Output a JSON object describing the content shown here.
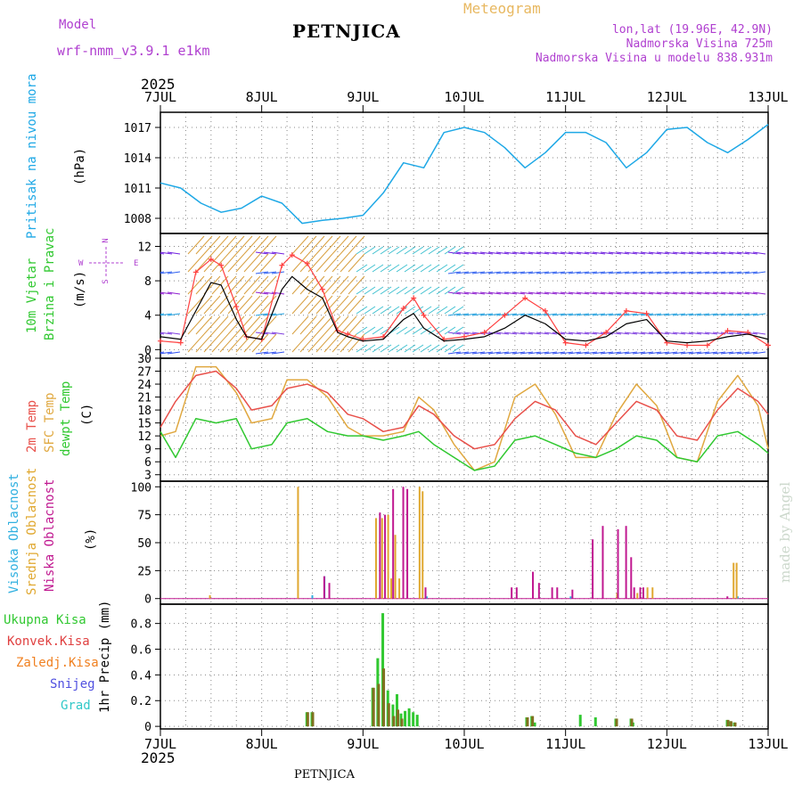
{
  "header": {
    "model_label": "Model",
    "model_name": "wrf-nmm_v3.9.1  e1km",
    "station": "PETNJICA",
    "meteogram": "Meteogram",
    "coords": "lon,lat (19.96E, 42.9N)",
    "elevation": "Nadmorska Visina 725m",
    "model_elevation": "Nadmorska Visina u modelu 838.931m"
  },
  "axis": {
    "year": "2025",
    "dates": [
      "7JUL",
      "8JUL",
      "9JUL",
      "10JUL",
      "11JUL",
      "12JUL",
      "13JUL"
    ]
  },
  "footer": {
    "station": "PETNJICA",
    "watermark": "made by Angel"
  },
  "panel_labels": {
    "pressure": [
      "Pritisak na nivou mora",
      "(hPa)"
    ],
    "wind": [
      "10m Vjetar",
      "Brzina i Pravac",
      "(m/s)"
    ],
    "compass": {
      "n": "N",
      "s": "S",
      "w": "W",
      "e": "E"
    },
    "temp": [
      "2m Temp",
      "SFC Temp",
      "dewpt Temp",
      "(C)"
    ],
    "cloud": [
      "Visoka Oblacnost",
      "Srednja Oblacnost",
      "Niska Oblacnost",
      "(%)"
    ],
    "precip_legend": [
      "Ukupna Kisa",
      "Konvek.Kisa",
      "Zaledj.Kisa",
      "Snijeg",
      "Grad"
    ],
    "precip_unit": "1hr Precip (mm)"
  },
  "colors": {
    "pressure": "#1ea8e6",
    "temp2m": "#e8504a",
    "sfc": "#e0a840",
    "dewpt": "#30c830",
    "high_cloud": "#30b0e0",
    "mid_cloud": "#e0a830",
    "low_cloud": "#c01890",
    "total_rain": "#30c830",
    "conv_rain": "#e04040",
    "frz_rain": "#f08020",
    "snow": "#5050e0",
    "hail": "#30c8c8",
    "wind_speed": "#000000",
    "gust": "#ff4040"
  },
  "chart_data": [
    {
      "type": "line",
      "panel": "pressure",
      "ylabel": "(hPa)",
      "ylim": [
        1006.5,
        1018.5
      ],
      "yticks": [
        1008,
        1011,
        1014,
        1017
      ],
      "xlim_days": [
        0,
        6
      ],
      "series": [
        {
          "name": "Pritisak na nivou mora",
          "x": [
            0,
            0.2,
            0.4,
            0.6,
            0.8,
            1.0,
            1.2,
            1.4,
            1.6,
            1.8,
            2.0,
            2.2,
            2.4,
            2.6,
            2.8,
            3.0,
            3.2,
            3.4,
            3.6,
            3.8,
            4.0,
            4.2,
            4.4,
            4.6,
            4.8,
            5.0,
            5.2,
            5.4,
            5.6,
            5.8,
            6.0
          ],
          "values": [
            1011.5,
            1011.0,
            1009.5,
            1008.6,
            1009.0,
            1010.2,
            1009.5,
            1007.5,
            1007.8,
            1008.0,
            1008.3,
            1010.5,
            1013.5,
            1013.0,
            1016.5,
            1017.0,
            1016.5,
            1015.0,
            1013.0,
            1014.5,
            1016.5,
            1016.5,
            1015.5,
            1013.0,
            1014.5,
            1016.8,
            1017.0,
            1015.5,
            1014.5,
            1015.8,
            1017.3
          ]
        }
      ]
    },
    {
      "type": "line",
      "panel": "wind",
      "ylabel": "(m/s)",
      "ylim": [
        -1,
        13.5
      ],
      "yticks": [
        0,
        4,
        8,
        12
      ],
      "series": [
        {
          "name": "wind_speed",
          "x": [
            0,
            0.2,
            0.35,
            0.5,
            0.6,
            0.75,
            0.85,
            1.0,
            1.2,
            1.3,
            1.45,
            1.6,
            1.75,
            1.85,
            2.0,
            2.2,
            2.4,
            2.5,
            2.6,
            2.8,
            3.0,
            3.2,
            3.4,
            3.6,
            3.8,
            4.0,
            4.2,
            4.4,
            4.6,
            4.8,
            5.0,
            5.2,
            5.4,
            5.6,
            5.8,
            6.0
          ],
          "values": [
            1.5,
            1.2,
            4.5,
            7.8,
            7.5,
            3.5,
            1.5,
            1.2,
            7.0,
            8.5,
            7.0,
            6.0,
            2.0,
            1.5,
            1.0,
            1.2,
            3.5,
            4.2,
            2.5,
            1.0,
            1.2,
            1.5,
            2.5,
            4.0,
            3.0,
            1.2,
            1.0,
            1.5,
            3.0,
            3.5,
            1.0,
            0.8,
            1.0,
            1.5,
            1.8,
            1.2
          ]
        },
        {
          "name": "gust",
          "x": [
            0,
            0.2,
            0.35,
            0.5,
            0.6,
            0.75,
            0.85,
            1.0,
            1.2,
            1.3,
            1.45,
            1.6,
            1.75,
            1.85,
            2.0,
            2.2,
            2.4,
            2.5,
            2.6,
            2.8,
            3.0,
            3.2,
            3.4,
            3.6,
            3.8,
            4.0,
            4.2,
            4.4,
            4.6,
            4.8,
            5.0,
            5.2,
            5.4,
            5.6,
            5.8,
            6.0
          ],
          "values": [
            1.0,
            0.8,
            9.0,
            10.5,
            9.8,
            5.0,
            1.5,
            1.2,
            9.8,
            11.0,
            10.0,
            7.0,
            2.2,
            1.8,
            1.2,
            1.5,
            4.8,
            6.0,
            4.0,
            1.2,
            1.5,
            2.0,
            4.0,
            6.0,
            4.5,
            0.8,
            0.5,
            2.0,
            4.5,
            4.2,
            0.8,
            0.5,
            0.5,
            2.2,
            2.0,
            0.5
          ]
        }
      ]
    },
    {
      "type": "line",
      "panel": "temp",
      "ylabel": "(C)",
      "ylim": [
        1.5,
        30
      ],
      "yticks": [
        3,
        6,
        9,
        12,
        15,
        18,
        21,
        24,
        27,
        30
      ],
      "series": [
        {
          "name": "2m Temp",
          "x": [
            0,
            0.15,
            0.35,
            0.55,
            0.75,
            0.9,
            1.1,
            1.25,
            1.45,
            1.65,
            1.85,
            2.0,
            2.2,
            2.4,
            2.55,
            2.7,
            2.9,
            3.1,
            3.3,
            3.5,
            3.7,
            3.9,
            4.1,
            4.3,
            4.5,
            4.7,
            4.9,
            5.1,
            5.3,
            5.5,
            5.7,
            5.9,
            6.0
          ],
          "values": [
            14,
            20,
            26,
            27,
            23,
            18,
            19,
            23,
            24,
            22,
            17,
            16,
            13,
            14,
            19,
            17,
            12,
            9,
            10,
            16,
            20,
            18,
            12,
            10,
            15,
            20,
            18,
            12,
            11,
            18,
            23,
            20,
            17
          ]
        },
        {
          "name": "SFC Temp",
          "x": [
            0,
            0.15,
            0.35,
            0.55,
            0.75,
            0.9,
            1.1,
            1.25,
            1.45,
            1.65,
            1.85,
            2.0,
            2.2,
            2.4,
            2.55,
            2.7,
            2.9,
            3.1,
            3.3,
            3.5,
            3.7,
            3.9,
            4.1,
            4.3,
            4.5,
            4.7,
            4.9,
            5.1,
            5.3,
            5.5,
            5.7,
            5.9,
            6.0
          ],
          "values": [
            12,
            13,
            28,
            28,
            22,
            15,
            16,
            25,
            25,
            21,
            14,
            12,
            12,
            13,
            21,
            18,
            10,
            4,
            6,
            21,
            24,
            17,
            7,
            7,
            17,
            24,
            19,
            7,
            6,
            20,
            26,
            19,
            9
          ]
        },
        {
          "name": "dewpt Temp",
          "x": [
            0,
            0.15,
            0.35,
            0.55,
            0.75,
            0.9,
            1.1,
            1.25,
            1.45,
            1.65,
            1.85,
            2.0,
            2.2,
            2.4,
            2.55,
            2.7,
            2.9,
            3.1,
            3.3,
            3.5,
            3.7,
            3.9,
            4.1,
            4.3,
            4.5,
            4.7,
            4.9,
            5.1,
            5.3,
            5.5,
            5.7,
            5.9,
            6.0
          ],
          "values": [
            13,
            7,
            16,
            15,
            16,
            9,
            10,
            15,
            16,
            13,
            12,
            12,
            11,
            12,
            13,
            10,
            7,
            4,
            5,
            11,
            12,
            10,
            8,
            7,
            9,
            12,
            11,
            7,
            6,
            12,
            13,
            10,
            8
          ]
        }
      ]
    },
    {
      "type": "bar",
      "panel": "cloud",
      "ylabel": "(%)",
      "ylim": [
        -5,
        105
      ],
      "yticks": [
        0,
        25,
        50,
        75,
        100
      ],
      "series": [
        {
          "name": "Visoka Oblacnost",
          "x": [
            1.5,
            1.62,
            2.63,
            4.05,
            5.7
          ],
          "values": [
            3,
            20,
            2,
            2,
            2
          ]
        },
        {
          "name": "Srednja Oblacnost",
          "x": [
            0.48,
            1.35,
            2.12,
            2.18,
            2.24,
            2.27,
            2.31,
            2.35,
            2.55,
            2.58,
            4.5,
            4.7,
            4.8,
            4.85,
            5.65,
            5.68
          ],
          "values": [
            3,
            100,
            72,
            72,
            75,
            18,
            57,
            18,
            100,
            96,
            5,
            5,
            10,
            10,
            32,
            32
          ]
        },
        {
          "name": "Niska Oblacnost",
          "x": [
            1.6,
            1.65,
            2.15,
            2.2,
            2.28,
            2.38,
            2.42,
            2.6,
            3.45,
            3.5,
            3.66,
            3.72,
            3.85,
            3.9,
            4.05,
            4.25,
            4.35,
            4.5,
            4.58,
            4.63,
            4.66,
            4.72,
            4.75,
            5.58
          ],
          "values": [
            20,
            14,
            77,
            75,
            98,
            100,
            98,
            10,
            10,
            10,
            24,
            14,
            10,
            10,
            8,
            53,
            65,
            62,
            65,
            37,
            10,
            10,
            10,
            2
          ]
        }
      ]
    },
    {
      "type": "bar",
      "panel": "precip",
      "ylabel": "1hr Precip (mm)",
      "ylim": [
        -0.02,
        0.95
      ],
      "yticks": [
        0,
        0.2,
        0.4,
        0.6,
        0.8
      ],
      "series": [
        {
          "name": "Ukupna Kisa",
          "x": [
            1.45,
            1.5,
            2.1,
            2.15,
            2.2,
            2.25,
            2.3,
            2.34,
            2.38,
            2.42,
            2.46,
            2.5,
            2.54,
            3.62,
            3.67,
            3.7,
            4.15,
            4.3,
            4.5,
            4.65,
            4.67,
            5.6,
            5.63,
            5.67
          ],
          "values": [
            0.11,
            0.11,
            0.3,
            0.53,
            0.88,
            0.28,
            0.17,
            0.25,
            0.1,
            0.12,
            0.14,
            0.11,
            0.09,
            0.07,
            0.08,
            0.03,
            0.09,
            0.07,
            0.06,
            0.06,
            0.03,
            0.05,
            0.04,
            0.03
          ]
        },
        {
          "name": "Konvek.Kisa",
          "x": [
            1.45,
            1.5,
            2.1,
            2.15,
            2.2,
            2.25,
            2.3,
            2.34,
            2.38,
            3.62,
            3.67,
            4.5,
            4.65,
            5.6,
            5.63,
            5.67
          ],
          "values": [
            0.11,
            0.11,
            0.3,
            0.33,
            0.45,
            0.18,
            0.08,
            0.13,
            0.06,
            0.07,
            0.08,
            0.06,
            0.06,
            0.05,
            0.04,
            0.03
          ]
        }
      ]
    }
  ]
}
